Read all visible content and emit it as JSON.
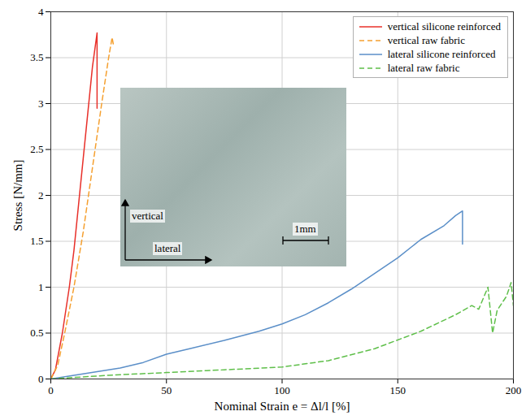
{
  "chart_data": {
    "type": "line",
    "xlabel": "Nominal Strain e = Δl/l [%]",
    "ylabel": "Stress [N/mm]",
    "xlim": [
      0,
      200
    ],
    "xticks": [
      0,
      50,
      100,
      150,
      200
    ],
    "ylim": [
      0,
      4
    ],
    "yticks": [
      0,
      0.5,
      1,
      1.5,
      2,
      2.5,
      3,
      3.5,
      4
    ],
    "grid": true,
    "legend": "upper right",
    "annotations": [
      "vertical",
      "lateral",
      "1mm"
    ],
    "series": [
      {
        "name": "vertical silicone reinforced",
        "color": "#e8302a",
        "line_style": "solid",
        "x": [
          0,
          2,
          5,
          8,
          10,
          12,
          14,
          16,
          18,
          20,
          20
        ],
        "values": [
          0,
          0.1,
          0.5,
          1.0,
          1.4,
          1.9,
          2.4,
          2.9,
          3.4,
          3.77,
          2.95
        ]
      },
      {
        "name": "vertical raw fabric",
        "color": "#f5a030",
        "line_style": "dashed",
        "x": [
          0,
          3,
          6,
          10,
          14,
          18,
          22,
          25,
          26.5,
          27
        ],
        "values": [
          0,
          0.15,
          0.5,
          1.0,
          1.6,
          2.3,
          3.0,
          3.5,
          3.72,
          3.65
        ]
      },
      {
        "name": "lateral silicone reinforced",
        "color": "#5b8fc8",
        "line_style": "solid",
        "x": [
          0,
          10,
          20,
          30,
          40,
          50,
          60,
          75,
          90,
          100,
          110,
          120,
          130,
          140,
          150,
          160,
          170,
          175,
          178,
          178
        ],
        "values": [
          0,
          0.04,
          0.08,
          0.12,
          0.18,
          0.27,
          0.33,
          0.42,
          0.52,
          0.6,
          0.7,
          0.83,
          0.98,
          1.15,
          1.32,
          1.52,
          1.67,
          1.78,
          1.83,
          1.47
        ]
      },
      {
        "name": "lateral raw fabric",
        "color": "#5fbf4a",
        "line_style": "dashed",
        "x": [
          0,
          25,
          50,
          75,
          100,
          120,
          140,
          160,
          175,
          182,
          185,
          189,
          191,
          193,
          197,
          199,
          200
        ],
        "values": [
          0,
          0.04,
          0.07,
          0.1,
          0.13,
          0.2,
          0.33,
          0.52,
          0.7,
          0.8,
          0.76,
          1.0,
          0.5,
          0.75,
          0.9,
          1.05,
          0.8
        ]
      }
    ]
  }
}
